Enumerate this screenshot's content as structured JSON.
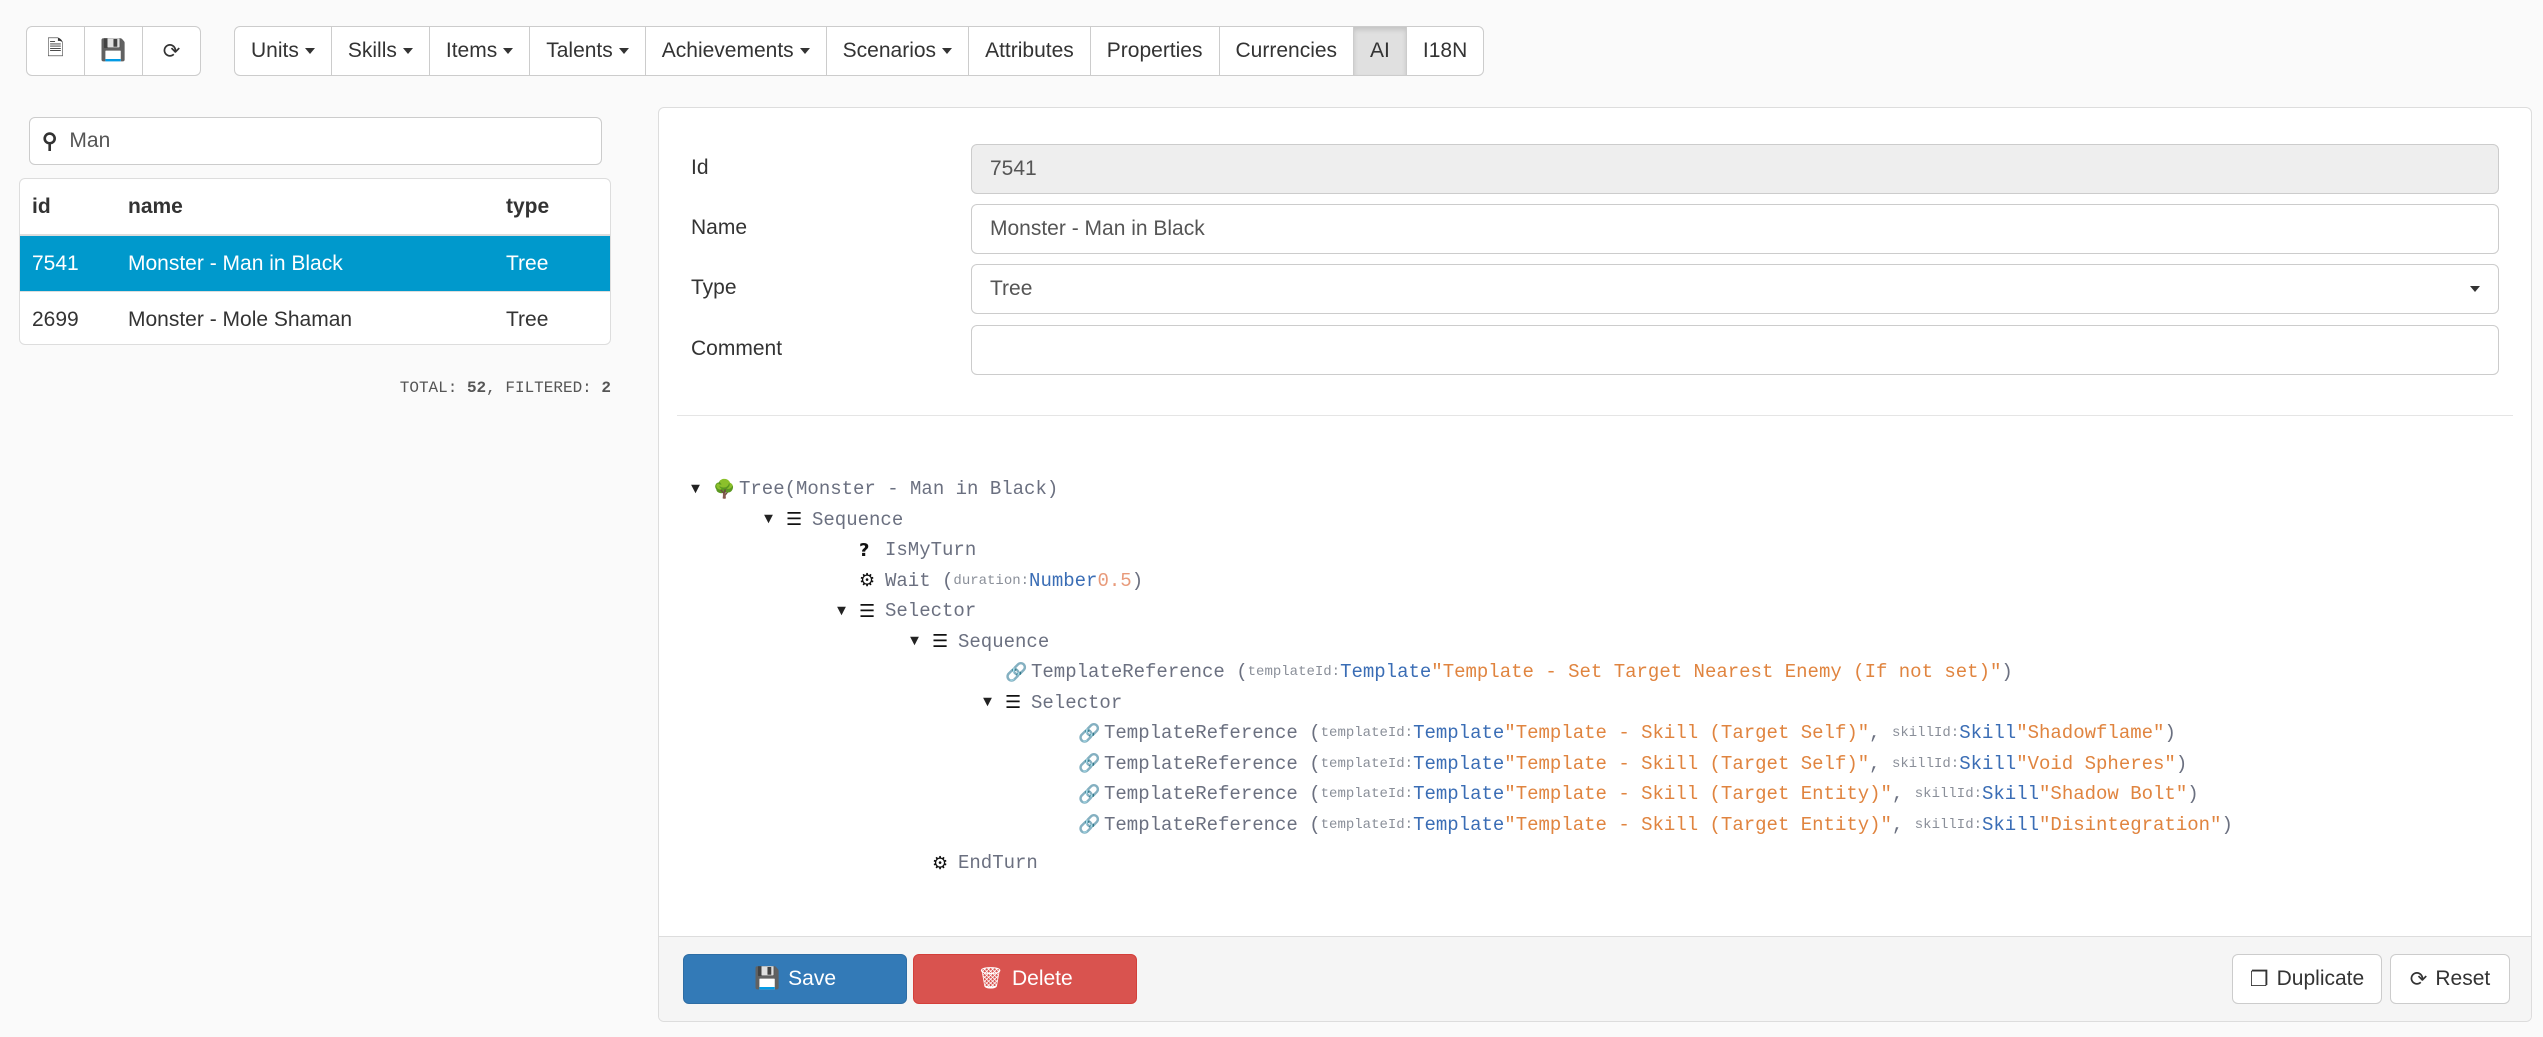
{
  "toolbar": {
    "file_icons": [
      "new-file-icon",
      "save-icon",
      "refresh-icon"
    ],
    "nav": [
      {
        "label": "Units",
        "dropdown": true
      },
      {
        "label": "Skills",
        "dropdown": true
      },
      {
        "label": "Items",
        "dropdown": true
      },
      {
        "label": "Talents",
        "dropdown": true
      },
      {
        "label": "Achievements",
        "dropdown": true
      },
      {
        "label": "Scenarios",
        "dropdown": true
      },
      {
        "label": "Attributes",
        "dropdown": false
      },
      {
        "label": "Properties",
        "dropdown": false
      },
      {
        "label": "Currencies",
        "dropdown": false
      },
      {
        "label": "AI",
        "dropdown": false,
        "active": true
      },
      {
        "label": "I18N",
        "dropdown": false
      }
    ]
  },
  "search": {
    "value": "Man"
  },
  "table": {
    "headers": [
      "id",
      "name",
      "type"
    ],
    "rows": [
      [
        "7541",
        "Monster - Man in Black",
        "Tree"
      ],
      [
        "2699",
        "Monster - Mole Shaman",
        "Tree"
      ]
    ],
    "selected_index": 0
  },
  "totals": {
    "total_label": "TOTAL:",
    "total": "52",
    "filtered_label": "FILTERED:",
    "filtered": "2"
  },
  "form": {
    "id_label": "Id",
    "id_value": "7541",
    "name_label": "Name",
    "name_value": "Monster - Man in Black",
    "type_label": "Type",
    "type_value": "Tree",
    "comment_label": "Comment",
    "comment_value": ""
  },
  "tree": [
    {
      "level": 0,
      "toggle": true,
      "icon": "tree-icon",
      "name": "Tree",
      "suffix": "(Monster - Man in Black)"
    },
    {
      "level": 1,
      "toggle": true,
      "icon": "list-check-icon",
      "name": "Sequence"
    },
    {
      "level": 2,
      "icon": "question-icon",
      "name": "IsMyTurn"
    },
    {
      "level": 2,
      "icon": "gears-icon",
      "name": "Wait",
      "args": [
        {
          "key": "duration:",
          "type": "Number",
          "value": "0.5",
          "kind": "num"
        }
      ]
    },
    {
      "level": 2,
      "toggle": true,
      "icon": "list-check-icon",
      "name": "Selector"
    },
    {
      "level": 3,
      "toggle": true,
      "icon": "list-check-icon",
      "name": "Sequence"
    },
    {
      "level": 4,
      "icon": "link-icon",
      "name": "TemplateReference",
      "args": [
        {
          "key": "templateId:",
          "type": "Template",
          "value": "\"Template - Set Target Nearest Enemy (If not set)\""
        }
      ]
    },
    {
      "level": 4,
      "toggle": true,
      "icon": "list-check-icon",
      "name": "Selector"
    },
    {
      "level": 5,
      "icon": "link-icon",
      "name": "TemplateReference",
      "args": [
        {
          "key": "templateId:",
          "type": "Template",
          "value": "\"Template - Skill (Target Self)\""
        },
        {
          "key": "skillId:",
          "type": "Skill",
          "value": "\"Shadowflame\""
        }
      ]
    },
    {
      "level": 5,
      "icon": "link-icon",
      "name": "TemplateReference",
      "args": [
        {
          "key": "templateId:",
          "type": "Template",
          "value": "\"Template - Skill (Target Self)\""
        },
        {
          "key": "skillId:",
          "type": "Skill",
          "value": "\"Void Spheres\""
        }
      ]
    },
    {
      "level": 5,
      "icon": "link-icon",
      "name": "TemplateReference",
      "args": [
        {
          "key": "templateId:",
          "type": "Template",
          "value": "\"Template - Skill (Target Entity)\""
        },
        {
          "key": "skillId:",
          "type": "Skill",
          "value": "\"Shadow Bolt\""
        }
      ]
    },
    {
      "level": 5,
      "icon": "link-icon",
      "name": "TemplateReference",
      "args": [
        {
          "key": "templateId:",
          "type": "Template",
          "value": "\"Template - Skill (Target Entity)\""
        },
        {
          "key": "skillId:",
          "type": "Skill",
          "value": "\"Disintegration\""
        }
      ]
    },
    {
      "level": 3,
      "icon": "gears-icon",
      "name": "EndTurn"
    }
  ],
  "footer": {
    "save": "Save",
    "delete": "Delete",
    "duplicate": "Duplicate",
    "reset": "Reset"
  },
  "colors": {
    "selected_row": "#0099cc",
    "save": "#337ab7",
    "delete": "#d9534f"
  }
}
